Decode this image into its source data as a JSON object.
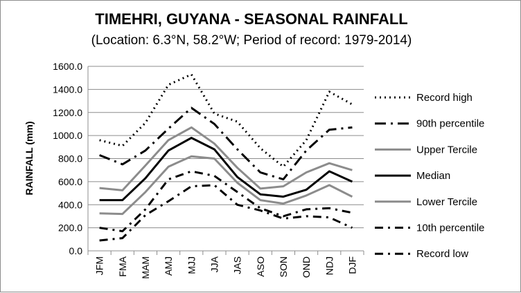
{
  "chart_data": {
    "type": "line",
    "title": "TIMEHRI, GUYANA - SEASONAL RAINFALL",
    "subtitle": "(Location: 6.3°N, 58.2°W; Period of record: 1979-2014)",
    "ylabel": "RAINFALL (mm)",
    "xlabel": "",
    "ylim": [
      0,
      1600
    ],
    "y_ticks": [
      "0.0",
      "200.0",
      "400.0",
      "600.0",
      "800.0",
      "1000.0",
      "1200.0",
      "1400.0",
      "1600.0"
    ],
    "categories": [
      "JFM",
      "FMA",
      "MAM",
      "AMJ",
      "MJJ",
      "JJA",
      "JAS",
      "ASO",
      "SON",
      "OND",
      "NDJ",
      "DJF"
    ],
    "grid": true,
    "legend_position": "right",
    "series": [
      {
        "name": "Record high",
        "style": "dotted",
        "color": "#000000",
        "values": [
          960,
          910,
          1110,
          1440,
          1530,
          1190,
          1120,
          890,
          730,
          960,
          1380,
          1270
        ]
      },
      {
        "name": "90th percentile",
        "style": "longdashdot",
        "color": "#000000",
        "values": [
          830,
          750,
          870,
          1060,
          1240,
          1100,
          880,
          680,
          620,
          870,
          1050,
          1070
        ]
      },
      {
        "name": "Upper Tercile",
        "style": "solid",
        "color": "#8c8c8c",
        "values": [
          545,
          525,
          740,
          960,
          1070,
          930,
          720,
          540,
          560,
          680,
          760,
          700
        ]
      },
      {
        "name": "Median",
        "style": "solid",
        "color": "#000000",
        "values": [
          440,
          440,
          630,
          870,
          980,
          880,
          640,
          490,
          470,
          530,
          690,
          600
        ]
      },
      {
        "name": "Lower Tercile",
        "style": "solid",
        "color": "#8c8c8c",
        "values": [
          325,
          320,
          510,
          730,
          820,
          800,
          590,
          440,
          410,
          480,
          570,
          470
        ]
      },
      {
        "name": "10th percentile",
        "style": "dashdot",
        "color": "#000000",
        "values": [
          200,
          170,
          360,
          620,
          690,
          650,
          510,
          370,
          300,
          360,
          370,
          330
        ]
      },
      {
        "name": "Record low",
        "style": "dashdot",
        "color": "#000000",
        "values": [
          90,
          110,
          310,
          430,
          560,
          570,
          400,
          350,
          280,
          300,
          290,
          200
        ]
      }
    ]
  }
}
